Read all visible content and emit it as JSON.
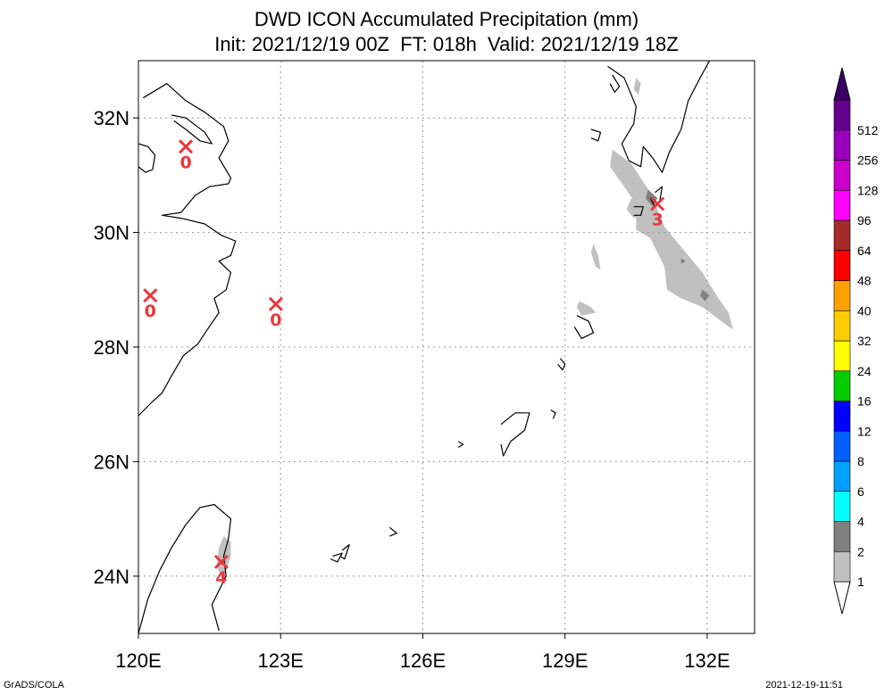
{
  "title": {
    "line1": "DWD ICON Accumulated Precipitation (mm)",
    "line2": "Init: 2021/12/19 00Z  FT: 018h  Valid: 2021/12/19 18Z"
  },
  "footer": {
    "left": "GrADS/COLA",
    "right": "2021-12-19-11:51"
  },
  "chart_data": {
    "type": "map",
    "xlim": [
      120,
      133
    ],
    "ylim": [
      23,
      33
    ],
    "x_ticks": [
      120,
      123,
      126,
      129,
      132
    ],
    "x_tick_labels": [
      "120E",
      "123E",
      "126E",
      "129E",
      "132E"
    ],
    "y_ticks": [
      24,
      26,
      28,
      30,
      32
    ],
    "y_tick_labels": [
      "24N",
      "26N",
      "28N",
      "30N",
      "32N"
    ],
    "grid": true,
    "stations": [
      {
        "lon": 121.0,
        "lat": 31.5,
        "value": "0"
      },
      {
        "lon": 120.25,
        "lat": 28.9,
        "value": "0"
      },
      {
        "lon": 122.9,
        "lat": 28.75,
        "value": "0"
      },
      {
        "lon": 130.95,
        "lat": 30.5,
        "value": "3"
      },
      {
        "lon": 121.75,
        "lat": 24.25,
        "value": "4"
      }
    ],
    "precip_areas": [
      {
        "level": "1-2",
        "color": "#c0c0c0",
        "points": [
          [
            130.0,
            31.45
          ],
          [
            130.4,
            31.2
          ],
          [
            130.8,
            30.7
          ],
          [
            131.1,
            30.1
          ],
          [
            131.5,
            29.7
          ],
          [
            131.9,
            29.3
          ],
          [
            132.2,
            28.9
          ],
          [
            132.45,
            28.6
          ],
          [
            132.55,
            28.3
          ],
          [
            132.3,
            28.45
          ],
          [
            131.9,
            28.7
          ],
          [
            131.45,
            28.85
          ],
          [
            131.15,
            29.0
          ],
          [
            131.1,
            29.4
          ],
          [
            130.8,
            29.9
          ],
          [
            130.5,
            30.05
          ],
          [
            130.5,
            30.5
          ],
          [
            130.25,
            30.8
          ],
          [
            129.95,
            31.15
          ]
        ]
      },
      {
        "level": "1-2",
        "color": "#c0c0c0",
        "points": [
          [
            129.3,
            28.8
          ],
          [
            129.55,
            28.7
          ],
          [
            129.65,
            28.6
          ],
          [
            129.35,
            28.55
          ],
          [
            129.25,
            28.7
          ]
        ]
      },
      {
        "level": "1-2",
        "color": "#c0c0c0",
        "points": [
          [
            130.4,
            30.6
          ],
          [
            130.55,
            30.5
          ],
          [
            130.6,
            30.3
          ],
          [
            130.45,
            30.25
          ],
          [
            130.3,
            30.4
          ]
        ]
      },
      {
        "level": "1-2",
        "color": "#c0c0c0",
        "points": [
          [
            129.6,
            29.8
          ],
          [
            129.7,
            29.6
          ],
          [
            129.75,
            29.35
          ],
          [
            129.65,
            29.4
          ],
          [
            129.55,
            29.65
          ]
        ]
      },
      {
        "level": "1-2",
        "color": "#c0c0c0",
        "points": [
          [
            130.5,
            32.7
          ],
          [
            130.6,
            32.6
          ],
          [
            130.55,
            32.4
          ],
          [
            130.45,
            32.5
          ]
        ]
      },
      {
        "level": "1-2",
        "color": "#c0c0c0",
        "points": [
          [
            121.8,
            24.7
          ],
          [
            121.95,
            24.6
          ],
          [
            121.95,
            24.35
          ],
          [
            121.85,
            24.1
          ],
          [
            121.75,
            23.95
          ],
          [
            121.65,
            24.2
          ],
          [
            121.7,
            24.5
          ]
        ]
      },
      {
        "level": "2-4",
        "color": "#808080",
        "points": [
          [
            130.75,
            30.75
          ],
          [
            130.95,
            30.6
          ],
          [
            130.85,
            30.45
          ],
          [
            130.7,
            30.6
          ]
        ]
      },
      {
        "level": "2-4",
        "color": "#808080",
        "points": [
          [
            131.9,
            29.0
          ],
          [
            132.05,
            28.9
          ],
          [
            131.95,
            28.8
          ],
          [
            131.85,
            28.9
          ]
        ]
      },
      {
        "level": "2-4",
        "color": "#808080",
        "points": [
          [
            131.45,
            29.55
          ],
          [
            131.55,
            29.5
          ],
          [
            131.45,
            29.45
          ]
        ]
      }
    ],
    "coastlines": [
      [
        [
          120.1,
          32.35
        ],
        [
          120.6,
          32.6
        ],
        [
          121.0,
          32.3
        ],
        [
          121.4,
          32.1
        ],
        [
          121.8,
          31.85
        ],
        [
          121.9,
          31.6
        ],
        [
          121.7,
          31.3
        ],
        [
          121.95,
          30.95
        ],
        [
          121.9,
          30.85
        ],
        [
          121.5,
          30.8
        ],
        [
          121.2,
          30.65
        ],
        [
          120.9,
          30.35
        ],
        [
          120.5,
          30.3
        ],
        [
          120.9,
          30.25
        ],
        [
          121.4,
          30.15
        ],
        [
          121.75,
          29.95
        ],
        [
          122.05,
          29.85
        ],
        [
          121.95,
          29.6
        ],
        [
          121.7,
          29.5
        ],
        [
          121.95,
          29.3
        ],
        [
          121.85,
          29.0
        ],
        [
          121.6,
          28.85
        ],
        [
          121.7,
          28.6
        ],
        [
          121.45,
          28.3
        ],
        [
          121.25,
          28.05
        ],
        [
          120.95,
          27.85
        ],
        [
          120.7,
          27.5
        ],
        [
          120.5,
          27.2
        ],
        [
          120.3,
          27.05
        ],
        [
          120.0,
          26.8
        ]
      ],
      [
        [
          120.0,
          31.55
        ],
        [
          120.2,
          31.5
        ],
        [
          120.35,
          31.35
        ],
        [
          120.3,
          31.1
        ],
        [
          120.15,
          31.05
        ],
        [
          120.0,
          31.15
        ]
      ],
      [
        [
          120.7,
          32.05
        ],
        [
          121.0,
          32.0
        ],
        [
          121.4,
          31.75
        ],
        [
          121.55,
          31.55
        ],
        [
          121.3,
          31.6
        ],
        [
          121.0,
          31.8
        ],
        [
          120.75,
          31.95
        ]
      ],
      [
        [
          121.7,
          23.05
        ],
        [
          121.55,
          23.5
        ],
        [
          121.85,
          24.0
        ],
        [
          121.8,
          24.35
        ],
        [
          121.9,
          24.65
        ],
        [
          121.95,
          25.0
        ],
        [
          121.6,
          25.25
        ],
        [
          121.3,
          25.2
        ],
        [
          121.0,
          24.9
        ],
        [
          120.7,
          24.5
        ],
        [
          120.45,
          24.1
        ],
        [
          120.2,
          23.6
        ],
        [
          120.1,
          23.3
        ],
        [
          120.0,
          23.0
        ]
      ],
      [
        [
          129.9,
          32.9
        ],
        [
          130.25,
          32.7
        ],
        [
          130.5,
          32.2
        ],
        [
          130.45,
          31.9
        ],
        [
          130.2,
          31.55
        ],
        [
          130.35,
          31.25
        ],
        [
          130.6,
          31.15
        ],
        [
          130.65,
          31.5
        ],
        [
          130.85,
          31.3
        ],
        [
          131.05,
          31.05
        ],
        [
          131.2,
          31.4
        ],
        [
          131.45,
          31.8
        ],
        [
          131.6,
          32.3
        ],
        [
          131.85,
          32.7
        ],
        [
          132.05,
          33.0
        ]
      ],
      [
        [
          130.45,
          30.45
        ],
        [
          130.65,
          30.45
        ],
        [
          130.6,
          30.3
        ],
        [
          130.45,
          30.3
        ]
      ],
      [
        [
          130.9,
          30.7
        ],
        [
          131.05,
          30.8
        ],
        [
          131.0,
          30.55
        ],
        [
          130.9,
          30.45
        ],
        [
          130.8,
          30.6
        ]
      ],
      [
        [
          129.25,
          28.55
        ],
        [
          129.5,
          28.45
        ],
        [
          129.6,
          28.25
        ],
        [
          129.35,
          28.15
        ],
        [
          129.2,
          28.35
        ]
      ],
      [
        [
          127.65,
          26.65
        ],
        [
          127.95,
          26.85
        ],
        [
          128.25,
          26.85
        ],
        [
          128.15,
          26.55
        ],
        [
          127.85,
          26.35
        ],
        [
          127.7,
          26.1
        ],
        [
          127.65,
          26.3
        ]
      ],
      [
        [
          128.9,
          27.8
        ],
        [
          129.0,
          27.7
        ],
        [
          128.95,
          27.6
        ],
        [
          128.85,
          27.7
        ]
      ],
      [
        [
          128.7,
          26.9
        ],
        [
          128.8,
          26.85
        ],
        [
          128.75,
          26.75
        ]
      ],
      [
        [
          124.1,
          24.35
        ],
        [
          124.3,
          24.4
        ],
        [
          124.2,
          24.25
        ],
        [
          124.05,
          24.3
        ]
      ],
      [
        [
          124.3,
          24.45
        ],
        [
          124.45,
          24.55
        ],
        [
          124.35,
          24.3
        ],
        [
          124.25,
          24.35
        ]
      ],
      [
        [
          125.3,
          24.85
        ],
        [
          125.45,
          24.75
        ],
        [
          125.3,
          24.7
        ]
      ],
      [
        [
          126.75,
          26.35
        ],
        [
          126.85,
          26.3
        ],
        [
          126.75,
          26.25
        ]
      ],
      [
        [
          130.0,
          32.75
        ],
        [
          130.15,
          32.55
        ],
        [
          130.05,
          32.45
        ],
        [
          129.95,
          32.6
        ]
      ],
      [
        [
          129.55,
          31.8
        ],
        [
          129.75,
          31.75
        ],
        [
          129.7,
          31.6
        ],
        [
          129.55,
          31.65
        ]
      ]
    ],
    "colorbar": {
      "levels": [
        "1",
        "2",
        "4",
        "6",
        "8",
        "12",
        "16",
        "24",
        "32",
        "40",
        "48",
        "64",
        "96",
        "128",
        "256",
        "512"
      ],
      "colors": [
        "#c0c0c0",
        "#808080",
        "#00ffff",
        "#00a0ff",
        "#0060ff",
        "#0000ff",
        "#00cc00",
        "#ffff00",
        "#ffcc00",
        "#ffa000",
        "#ff0000",
        "#a52a2a",
        "#ff00ff",
        "#cc00cc",
        "#9900bb",
        "#66008f"
      ]
    }
  }
}
